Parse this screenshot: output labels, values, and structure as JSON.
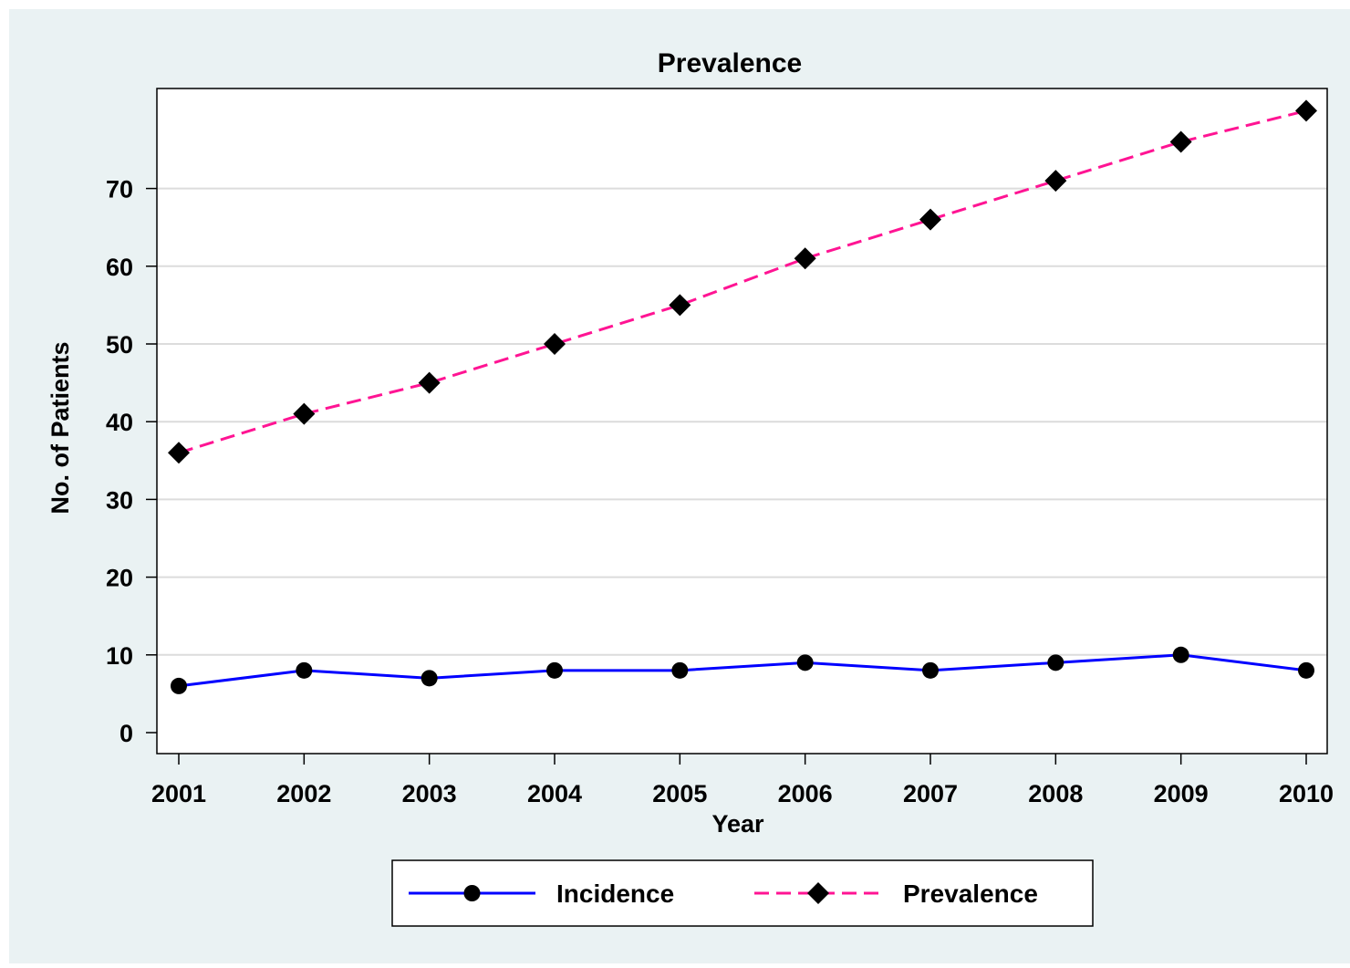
{
  "chart_data": {
    "type": "line",
    "title": "Prevalence",
    "xlabel": "Year",
    "ylabel": "No. of Patients",
    "x": [
      2001,
      2002,
      2003,
      2004,
      2005,
      2006,
      2007,
      2008,
      2009,
      2010
    ],
    "xlim": [
      2001,
      2010
    ],
    "ylim": [
      0,
      80
    ],
    "yticks": [
      0,
      10,
      20,
      30,
      40,
      50,
      60,
      70
    ],
    "grid": "horizontal",
    "legend_position": "bottom",
    "series": [
      {
        "name": "Incidence",
        "values": [
          6,
          8,
          7,
          8,
          8,
          9,
          8,
          9,
          10,
          8
        ],
        "color": "#0000ff",
        "line_style": "solid",
        "marker": "circle"
      },
      {
        "name": "Prevalence",
        "values": [
          36,
          41,
          45,
          50,
          55,
          61,
          66,
          71,
          76,
          80
        ],
        "color": "#ff1493",
        "line_style": "dashed",
        "marker": "diamond"
      }
    ],
    "colors": {
      "background": "#eaf2f3",
      "plot_area": "#ffffff",
      "grid": "#dcdcdc",
      "marker": "#000000"
    }
  }
}
